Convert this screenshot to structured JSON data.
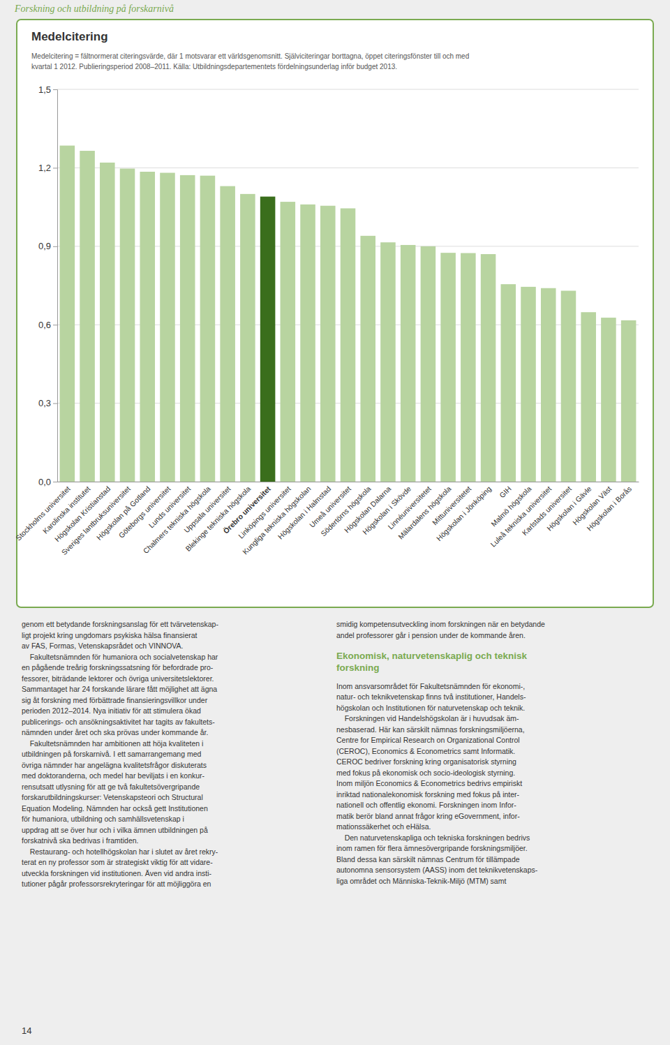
{
  "page": {
    "title": "Forskning och utbildning på forskarnivå",
    "left_column": [
      "genom ett betydande forskningsanslag för ett tvärvetenskap-",
      "ligt projekt kring ungdomars psykiska hälsa finansierat",
      "av FAS, Formas, Vetenskapsrådet och VINNOVA.",
      "    Fakultetsnämnden för humaniora och socialvetenskap har",
      "en pågående treårig forskningssatsning för befordrade pro-",
      "fessorer, biträdande lektorer och övriga universitetslektorer.",
      "Sammantaget har 24 forskande lärare fått möjlighet att ägna",
      "sig åt forskning med förbättrade finansieringsvillkor under",
      "perioden 2012–2014. Nya initiativ för att stimulera ökad",
      "publicerings- och ansökningsaktivitet har tagits av fakultets-",
      "nämnden under året och ska prövas under kommande år.",
      "    Fakultetsnämnden har ambitionen att höja kvaliteten i",
      "utbildningen på forskarnivå. I ett samarrangemang med",
      "övriga nämnder har angelägna kvalitetsfrågor diskuterats",
      "med doktoranderna, och medel har beviljats i en konkur-",
      "rensutsatt utlysning för att ge två fakultetsövergripande",
      "forskarutbildningskurser: Vetenskapsteori och Structural",
      "Equation Modeling. Nämnden har också gett Institutionen",
      "för humaniora, utbildning och samhällsvetenskap i",
      "uppdrag att se över hur och i vilka ämnen utbildningen på",
      "forskatnivå ska bedrivas i framtiden.",
      "    Restaurang- och hotellhögskolan har i slutet av året rekry-",
      "terat en ny professor som är strategiskt viktig för att vidare-",
      "utveckla forskningen vid institutionen. Även vid andra insti-",
      "tutioner pågår professorsrekryteringar för att möjliggöra en"
    ],
    "right_column": [
      "smidig kompetensutveckling inom forskningen när en betydande",
      "andel professorer går i pension under de kommande åren."
    ],
    "right_heading": [
      "Ekonomisk, naturvetenskaplig och teknisk",
      "forskning"
    ],
    "right_column_2": [
      "Inom ansvarsområdet för Fakultetsnämnden för ekonomi-,",
      "natur- och teknikvetenskap finns två institutioner, Handels-",
      "högskolan och Institutionen för naturvetenskap och teknik.",
      "    Forskningen vid Handelshögskolan är i huvudsak äm-",
      "nesbaserad. Här kan särskilt nämnas forskningsmiljöerna,",
      "Centre for Empirical Research on Organizational Control",
      "(CEROC), Economics & Econometrics samt Informatik.",
      "CEROC bedriver forskning kring organisatorisk styrning",
      "med fokus på ekonomisk och socio-ideologisk styrning.",
      "Inom miljön Economics & Econometrics bedrivs empiriskt",
      "inriktad nationalekonomisk forskning med fokus på inter-",
      "nationell och offentlig ekonomi. Forskningen inom Infor-",
      "matik berör bland annat frågor kring eGovernment, infor-",
      "mationssäkerhet och eHälsa.",
      "    Den naturvetenskapliga och tekniska forskningen bedrivs",
      "inom ramen för flera ämnesövergripande forskningsmiljöer.",
      "Bland dessa kan särskilt nämnas Centrum för tillämpade",
      "autonomna sensorsystem (AASS) inom det teknikvetenskaps-",
      "liga området och Människa-Teknik-Miljö (MTM) samt"
    ],
    "page_number": "14"
  },
  "chart_data": {
    "type": "bar",
    "title": "Medelcitering",
    "subtitle": [
      "Medelcitering = fältnormerat citeringsvärde, där 1 motsvarar ett världsgenomsnitt. Själviciteringar borttagna, öppet citeringsfönster till och med",
      "kvartal 1 2012. Publieringsperiod 2008–2011. Källa: Utbildningsdepartementets fördelningsunderlag inför budget 2013."
    ],
    "categories": [
      "Stockholms universitet",
      "Karolinska institutet",
      "Högskolan Kristianstad",
      "Sveriges lantbruksuniversitet",
      "Högskolan på Gotland",
      "Göteborgs universitet",
      "Lunds universitet",
      "Chalmers tekniska högskola",
      "Uppsala universitet",
      "Blekinge tekniska högskola",
      "Örebro universitet",
      "Linköpings universitet",
      "Kungliga tekniska högskolan",
      "Högskolan i Halmstad",
      "Umeå universitet",
      "Södertörns högskola",
      "Högskolan Dalarna",
      "Högskolan i Skövde",
      "Linnéuniversitetet",
      "Mälardalens högskola",
      "Mittuniversitetet",
      "Högskolan i Jönköping",
      "GIH",
      "Malmö högskola",
      "Luleå tekniska universitet",
      "Karlstads universitet",
      "Högskolan i Gävle",
      "Högskolan Väst",
      "Högskolan i Borås"
    ],
    "values": [
      1.285,
      1.265,
      1.22,
      1.197,
      1.185,
      1.181,
      1.172,
      1.17,
      1.13,
      1.1,
      1.09,
      1.07,
      1.06,
      1.055,
      1.045,
      0.94,
      0.915,
      0.905,
      0.9,
      0.875,
      0.874,
      0.87,
      0.755,
      0.745,
      0.74,
      0.73,
      0.648,
      0.627,
      0.617
    ],
    "colors": [
      "#b8d4a0",
      "#b8d4a0",
      "#b8d4a0",
      "#b8d4a0",
      "#b8d4a0",
      "#b8d4a0",
      "#b8d4a0",
      "#b8d4a0",
      "#b8d4a0",
      "#b8d4a0",
      "#3a6e1c",
      "#b8d4a0",
      "#b8d4a0",
      "#b8d4a0",
      "#b8d4a0",
      "#b8d4a0",
      "#b8d4a0",
      "#b8d4a0",
      "#b8d4a0",
      "#b8d4a0",
      "#b8d4a0",
      "#b8d4a0",
      "#b8d4a0",
      "#b8d4a0",
      "#b8d4a0",
      "#b8d4a0",
      "#b8d4a0",
      "#b8d4a0",
      "#b8d4a0"
    ],
    "ylim": [
      0.0,
      1.5
    ],
    "yticks": [
      {
        "value": 0.0,
        "label": "0,0"
      },
      {
        "value": 0.3,
        "label": "0,3"
      },
      {
        "value": 0.6,
        "label": "0,6"
      },
      {
        "value": 0.9,
        "label": "0,9"
      },
      {
        "value": 1.2,
        "label": "1,2"
      },
      {
        "value": 1.5,
        "label": "1,5"
      }
    ],
    "grid": true
  }
}
